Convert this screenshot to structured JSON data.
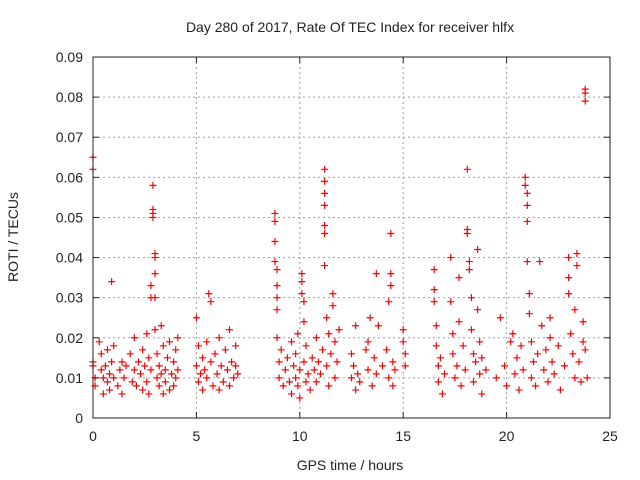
{
  "chart_data": {
    "type": "scatter",
    "title": "Day 280 of 2017, Rate Of TEC Index for receiver hlfx",
    "xlabel": "GPS time / hours",
    "ylabel": "ROTI / TECUs",
    "xlim": [
      0,
      25
    ],
    "ylim": [
      0,
      0.09
    ],
    "grid": true,
    "marker": "+",
    "marker_color": "#ff0000",
    "x_ticks": [
      0,
      5,
      10,
      15,
      20,
      25
    ],
    "x_tick_labels": [
      "0",
      "5",
      "10",
      "15",
      "20",
      "25"
    ],
    "y_ticks": [
      0,
      0.01,
      0.02,
      0.03,
      0.04,
      0.05,
      0.06,
      0.07,
      0.08,
      0.09
    ],
    "y_tick_labels": [
      "0",
      "0.01",
      "0.02",
      "0.03",
      "0.04",
      "0.05",
      "0.06",
      "0.07",
      "0.08",
      "0.09"
    ],
    "series": [
      {
        "name": "ROTI",
        "points": [
          [
            0.0,
            0.065
          ],
          [
            0.0,
            0.062
          ],
          [
            0.0,
            0.014
          ],
          [
            0.0,
            0.013
          ],
          [
            0.1,
            0.01
          ],
          [
            0.1,
            0.008
          ],
          [
            0.3,
            0.019
          ],
          [
            0.4,
            0.012
          ],
          [
            0.4,
            0.016
          ],
          [
            0.5,
            0.01
          ],
          [
            0.5,
            0.006
          ],
          [
            0.6,
            0.013
          ],
          [
            0.7,
            0.009
          ],
          [
            0.7,
            0.017
          ],
          [
            0.8,
            0.011
          ],
          [
            0.8,
            0.007
          ],
          [
            0.9,
            0.034
          ],
          [
            0.9,
            0.014
          ],
          [
            1.0,
            0.01
          ],
          [
            1.0,
            0.018
          ],
          [
            1.2,
            0.008
          ],
          [
            1.3,
            0.012
          ],
          [
            1.4,
            0.006
          ],
          [
            1.4,
            0.014
          ],
          [
            1.5,
            0.01
          ],
          [
            1.6,
            0.013
          ],
          [
            1.8,
            0.016
          ],
          [
            1.9,
            0.009
          ],
          [
            2.0,
            0.012
          ],
          [
            2.0,
            0.02
          ],
          [
            2.1,
            0.008
          ],
          [
            2.2,
            0.014
          ],
          [
            2.3,
            0.011
          ],
          [
            2.4,
            0.017
          ],
          [
            2.4,
            0.007
          ],
          [
            2.5,
            0.013
          ],
          [
            2.6,
            0.021
          ],
          [
            2.6,
            0.009
          ],
          [
            2.7,
            0.015
          ],
          [
            2.7,
            0.006
          ],
          [
            2.8,
            0.03
          ],
          [
            2.8,
            0.033
          ],
          [
            2.8,
            0.012
          ],
          [
            2.9,
            0.058
          ],
          [
            2.9,
            0.052
          ],
          [
            2.9,
            0.051
          ],
          [
            2.9,
            0.05
          ],
          [
            3.0,
            0.041
          ],
          [
            3.0,
            0.04
          ],
          [
            3.0,
            0.036
          ],
          [
            3.0,
            0.03
          ],
          [
            3.0,
            0.022
          ],
          [
            3.1,
            0.01
          ],
          [
            3.1,
            0.016
          ],
          [
            3.2,
            0.008
          ],
          [
            3.2,
            0.013
          ],
          [
            3.3,
            0.023
          ],
          [
            3.3,
            0.011
          ],
          [
            3.4,
            0.006
          ],
          [
            3.4,
            0.018
          ],
          [
            3.5,
            0.012
          ],
          [
            3.5,
            0.009
          ],
          [
            3.6,
            0.015
          ],
          [
            3.7,
            0.007
          ],
          [
            3.7,
            0.019
          ],
          [
            3.8,
            0.011
          ],
          [
            3.9,
            0.014
          ],
          [
            3.9,
            0.008
          ],
          [
            4.0,
            0.017
          ],
          [
            4.0,
            0.01
          ],
          [
            4.1,
            0.012
          ],
          [
            4.1,
            0.02
          ],
          [
            5.0,
            0.025
          ],
          [
            5.0,
            0.013
          ],
          [
            5.1,
            0.009
          ],
          [
            5.1,
            0.018
          ],
          [
            5.2,
            0.011
          ],
          [
            5.3,
            0.015
          ],
          [
            5.3,
            0.007
          ],
          [
            5.4,
            0.012
          ],
          [
            5.5,
            0.019
          ],
          [
            5.5,
            0.01
          ],
          [
            5.6,
            0.031
          ],
          [
            5.7,
            0.029
          ],
          [
            5.7,
            0.014
          ],
          [
            5.8,
            0.008
          ],
          [
            5.9,
            0.016
          ],
          [
            6.0,
            0.011
          ],
          [
            6.1,
            0.02
          ],
          [
            6.1,
            0.007
          ],
          [
            6.2,
            0.013
          ],
          [
            6.3,
            0.009
          ],
          [
            6.4,
            0.017
          ],
          [
            6.5,
            0.012
          ],
          [
            6.6,
            0.022
          ],
          [
            6.6,
            0.008
          ],
          [
            6.7,
            0.014
          ],
          [
            6.8,
            0.01
          ],
          [
            6.9,
            0.018
          ],
          [
            6.9,
            0.013
          ],
          [
            7.0,
            0.011
          ],
          [
            8.8,
            0.051
          ],
          [
            8.8,
            0.049
          ],
          [
            8.8,
            0.044
          ],
          [
            8.8,
            0.039
          ],
          [
            8.9,
            0.037
          ],
          [
            8.9,
            0.033
          ],
          [
            8.9,
            0.03
          ],
          [
            8.9,
            0.027
          ],
          [
            8.9,
            0.02
          ],
          [
            9.0,
            0.014
          ],
          [
            9.0,
            0.01
          ],
          [
            9.1,
            0.017
          ],
          [
            9.2,
            0.008
          ],
          [
            9.3,
            0.012
          ],
          [
            9.4,
            0.015
          ],
          [
            9.5,
            0.009
          ],
          [
            9.6,
            0.019
          ],
          [
            9.6,
            0.006
          ],
          [
            9.7,
            0.013
          ],
          [
            9.8,
            0.01
          ],
          [
            9.8,
            0.016
          ],
          [
            9.9,
            0.008
          ],
          [
            9.9,
            0.021
          ],
          [
            10.0,
            0.012
          ],
          [
            10.0,
            0.005
          ],
          [
            10.1,
            0.036
          ],
          [
            10.1,
            0.034
          ],
          [
            10.1,
            0.031
          ],
          [
            10.2,
            0.029
          ],
          [
            10.2,
            0.024
          ],
          [
            10.2,
            0.014
          ],
          [
            10.3,
            0.009
          ],
          [
            10.3,
            0.018
          ],
          [
            10.4,
            0.011
          ],
          [
            10.5,
            0.007
          ],
          [
            10.6,
            0.015
          ],
          [
            10.7,
            0.012
          ],
          [
            10.8,
            0.02
          ],
          [
            10.8,
            0.009
          ],
          [
            10.9,
            0.014
          ],
          [
            11.0,
            0.011
          ],
          [
            11.1,
            0.017
          ],
          [
            11.2,
            0.062
          ],
          [
            11.2,
            0.059
          ],
          [
            11.2,
            0.056
          ],
          [
            11.2,
            0.053
          ],
          [
            11.2,
            0.048
          ],
          [
            11.2,
            0.046
          ],
          [
            11.2,
            0.038
          ],
          [
            11.3,
            0.025
          ],
          [
            11.3,
            0.013
          ],
          [
            11.4,
            0.021
          ],
          [
            11.4,
            0.008
          ],
          [
            11.5,
            0.016
          ],
          [
            11.6,
            0.028
          ],
          [
            11.6,
            0.031
          ],
          [
            11.7,
            0.019
          ],
          [
            11.7,
            0.01
          ],
          [
            11.8,
            0.014
          ],
          [
            11.9,
            0.022
          ],
          [
            12.5,
            0.016
          ],
          [
            12.5,
            0.01
          ],
          [
            12.6,
            0.013
          ],
          [
            12.7,
            0.023
          ],
          [
            12.7,
            0.007
          ],
          [
            12.8,
            0.011
          ],
          [
            12.9,
            0.009
          ],
          [
            13.2,
            0.017
          ],
          [
            13.3,
            0.012
          ],
          [
            13.3,
            0.019
          ],
          [
            13.4,
            0.025
          ],
          [
            13.5,
            0.008
          ],
          [
            13.6,
            0.015
          ],
          [
            13.7,
            0.036
          ],
          [
            13.7,
            0.011
          ],
          [
            13.8,
            0.023
          ],
          [
            14.0,
            0.013
          ],
          [
            14.2,
            0.017
          ],
          [
            14.3,
            0.029
          ],
          [
            14.3,
            0.01
          ],
          [
            14.4,
            0.046
          ],
          [
            14.4,
            0.036
          ],
          [
            14.4,
            0.033
          ],
          [
            14.5,
            0.014
          ],
          [
            14.5,
            0.008
          ],
          [
            14.6,
            0.012
          ],
          [
            15.0,
            0.022
          ],
          [
            15.0,
            0.019
          ],
          [
            15.1,
            0.016
          ],
          [
            15.1,
            0.013
          ],
          [
            16.5,
            0.037
          ],
          [
            16.5,
            0.032
          ],
          [
            16.5,
            0.029
          ],
          [
            16.6,
            0.023
          ],
          [
            16.6,
            0.018
          ],
          [
            16.7,
            0.013
          ],
          [
            16.7,
            0.009
          ],
          [
            16.8,
            0.015
          ],
          [
            16.9,
            0.006
          ],
          [
            17.0,
            0.011
          ],
          [
            17.3,
            0.04
          ],
          [
            17.3,
            0.029
          ],
          [
            17.4,
            0.021
          ],
          [
            17.4,
            0.016
          ],
          [
            17.5,
            0.01
          ],
          [
            17.6,
            0.013
          ],
          [
            17.7,
            0.035
          ],
          [
            17.7,
            0.024
          ],
          [
            17.8,
            0.008
          ],
          [
            17.9,
            0.018
          ],
          [
            18.0,
            0.012
          ],
          [
            18.1,
            0.062
          ],
          [
            18.1,
            0.047
          ],
          [
            18.1,
            0.046
          ],
          [
            18.2,
            0.039
          ],
          [
            18.2,
            0.037
          ],
          [
            18.3,
            0.03
          ],
          [
            18.3,
            0.022
          ],
          [
            18.4,
            0.016
          ],
          [
            18.4,
            0.009
          ],
          [
            18.5,
            0.014
          ],
          [
            18.6,
            0.042
          ],
          [
            18.6,
            0.027
          ],
          [
            18.7,
            0.019
          ],
          [
            18.7,
            0.011
          ],
          [
            18.8,
            0.015
          ],
          [
            18.8,
            0.006
          ],
          [
            19.0,
            0.012
          ],
          [
            19.5,
            0.01
          ],
          [
            19.7,
            0.025
          ],
          [
            19.9,
            0.013
          ],
          [
            20.0,
            0.008
          ],
          [
            20.2,
            0.019
          ],
          [
            20.3,
            0.021
          ],
          [
            20.4,
            0.011
          ],
          [
            20.5,
            0.015
          ],
          [
            20.6,
            0.007
          ],
          [
            20.7,
            0.018
          ],
          [
            20.8,
            0.012
          ],
          [
            20.9,
            0.06
          ],
          [
            20.9,
            0.058
          ],
          [
            21.0,
            0.056
          ],
          [
            21.0,
            0.053
          ],
          [
            21.0,
            0.049
          ],
          [
            21.0,
            0.039
          ],
          [
            21.1,
            0.031
          ],
          [
            21.1,
            0.026
          ],
          [
            21.2,
            0.019
          ],
          [
            21.2,
            0.01
          ],
          [
            21.3,
            0.014
          ],
          [
            21.4,
            0.008
          ],
          [
            21.5,
            0.016
          ],
          [
            21.6,
            0.039
          ],
          [
            21.7,
            0.023
          ],
          [
            21.8,
            0.012
          ],
          [
            21.9,
            0.017
          ],
          [
            22.0,
            0.009
          ],
          [
            22.1,
            0.025
          ],
          [
            22.1,
            0.02
          ],
          [
            22.2,
            0.014
          ],
          [
            22.3,
            0.011
          ],
          [
            22.5,
            0.018
          ],
          [
            22.6,
            0.007
          ],
          [
            22.8,
            0.013
          ],
          [
            23.0,
            0.04
          ],
          [
            23.0,
            0.035
          ],
          [
            23.0,
            0.031
          ],
          [
            23.1,
            0.021
          ],
          [
            23.2,
            0.016
          ],
          [
            23.3,
            0.027
          ],
          [
            23.3,
            0.01
          ],
          [
            23.4,
            0.038
          ],
          [
            23.4,
            0.041
          ],
          [
            23.5,
            0.014
          ],
          [
            23.6,
            0.009
          ],
          [
            23.7,
            0.024
          ],
          [
            23.7,
            0.019
          ],
          [
            23.8,
            0.082
          ],
          [
            23.8,
            0.081
          ],
          [
            23.8,
            0.079
          ],
          [
            23.8,
            0.017
          ],
          [
            23.9,
            0.01
          ]
        ]
      }
    ]
  }
}
